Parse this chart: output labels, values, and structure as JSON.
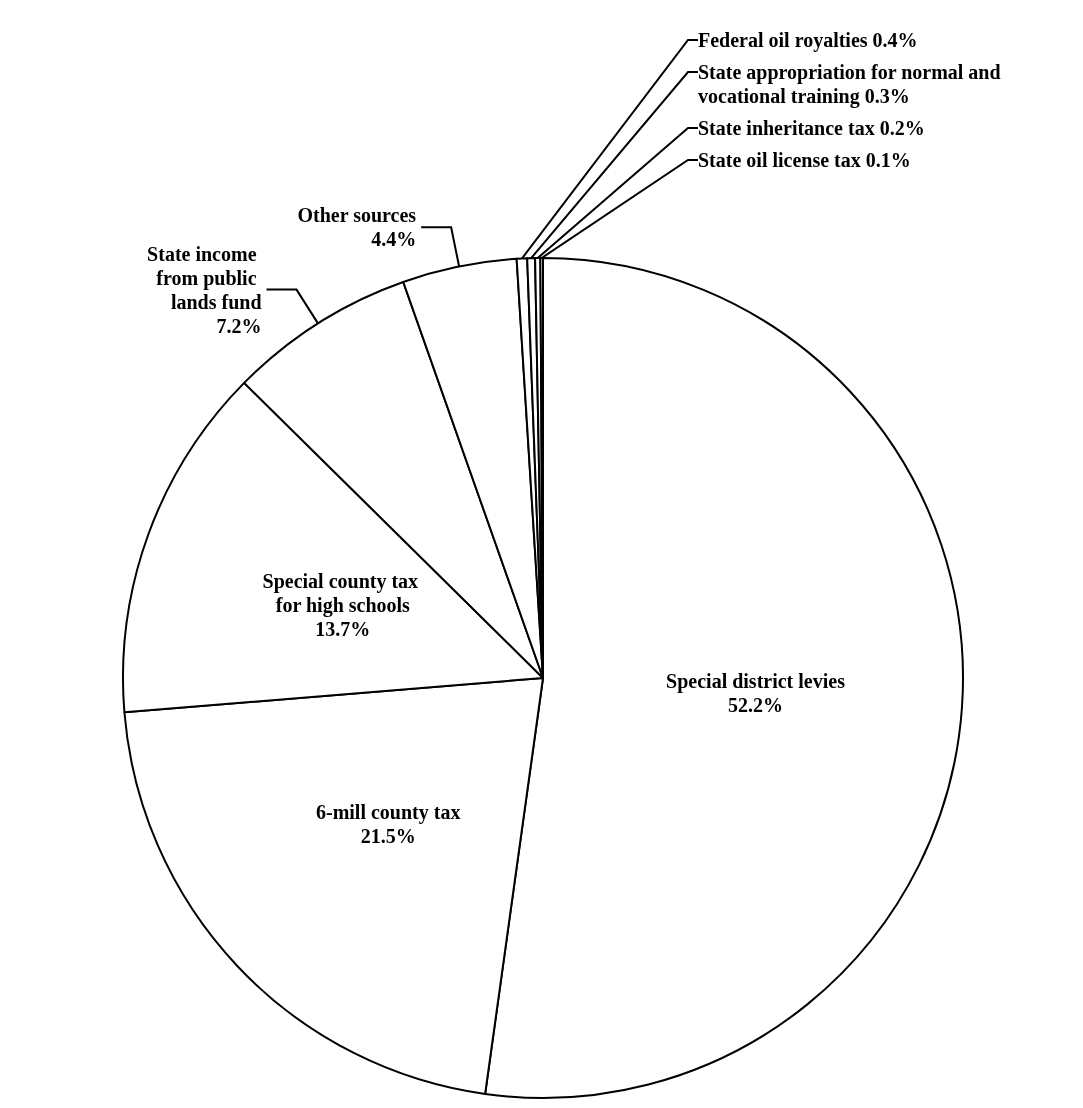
{
  "chart_data": {
    "type": "pie",
    "categories": [
      "Special district levies",
      "6-mill county tax",
      "Special county tax for high schools",
      "State income from public lands fund",
      "Other sources",
      "Federal oil royalties",
      "State appropriation for normal and vocational training",
      "State inheritance tax",
      "State oil license tax"
    ],
    "values": [
      52.2,
      21.5,
      13.7,
      7.2,
      4.4,
      0.4,
      0.3,
      0.2,
      0.1
    ],
    "value_labels": [
      "52.2%",
      "21.5%",
      "13.7%",
      "7.2%",
      "4.4%",
      "0.4%",
      "0.3%",
      "0.2%",
      "0.1%"
    ],
    "colors": [
      "#ffffff",
      "#ffffff",
      "#ffffff",
      "#ffffff",
      "#ffffff",
      "#ffffff",
      "#ffffff",
      "#ffffff",
      "#ffffff"
    ],
    "legend": false
  }
}
